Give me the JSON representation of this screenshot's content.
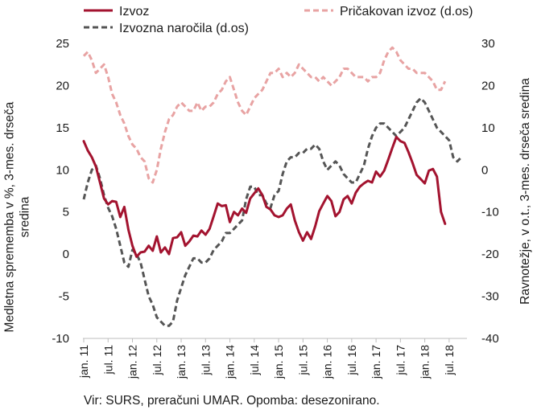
{
  "chart_data": {
    "type": "line",
    "title": "",
    "y_left": {
      "label": [
        "Medletna sprememba v %, 3-mes. drseča",
        "sredina"
      ],
      "min": -10,
      "max": 25,
      "ticks": [
        25,
        20,
        15,
        10,
        5,
        0,
        -5,
        -10
      ]
    },
    "y_right": {
      "label": [
        "Ravnotežje, v o.t., 3-mes. drseča sredina"
      ],
      "min": -40,
      "max": 30,
      "ticks": [
        30,
        20,
        10,
        0,
        -10,
        -20,
        -30,
        -40
      ]
    },
    "x_labels": [
      "jan. 11",
      "jul. 11",
      "jan. 12",
      "jul. 12",
      "jan. 13",
      "jul. 13",
      "jan. 14",
      "jul. 14",
      "jan. 15",
      "jul. 15",
      "jan. 16",
      "jul. 16",
      "jan. 17",
      "jul. 17",
      "jan. 18",
      "jul. 18"
    ],
    "x_start": "2011-01",
    "x_months": 94,
    "series": [
      {
        "name": "Izvoz",
        "axis": "left",
        "color": "#a3132f",
        "dash": "solid",
        "values": [
          13.4,
          12.3,
          11.5,
          10.4,
          8.5,
          6.6,
          5.9,
          6.3,
          6.2,
          4.4,
          5.6,
          2.9,
          1.0,
          -0.3,
          0.2,
          0.3,
          1.0,
          0.4,
          2.1,
          0.2,
          0.8,
          0.0,
          1.9,
          2.0,
          2.6,
          1.0,
          1.5,
          2.2,
          2.1,
          2.8,
          2.3,
          3.0,
          4.5,
          6.0,
          5.7,
          5.8,
          3.8,
          5.0,
          4.6,
          5.4,
          4.9,
          6.6,
          7.2,
          7.8,
          7.0,
          5.6,
          5.3,
          4.6,
          4.4,
          4.6,
          5.4,
          5.9,
          4.0,
          2.6,
          1.6,
          2.6,
          1.8,
          3.3,
          5.1,
          6.0,
          6.9,
          6.3,
          4.5,
          5.0,
          6.5,
          6.9,
          6.0,
          7.3,
          8.0,
          8.4,
          8.7,
          8.5,
          9.8,
          9.2,
          9.9,
          11.2,
          12.6,
          13.9,
          13.4,
          13.2,
          12.1,
          10.8,
          9.4,
          8.9,
          8.4,
          9.9,
          10.1,
          9.2,
          5.0,
          3.6
        ]
      },
      {
        "name": "Pričakovan izvoz (d.os)",
        "axis": "right",
        "color": "#e8a3a3",
        "dash": "dashed",
        "values": [
          27,
          28,
          26,
          23,
          24,
          25,
          22,
          18,
          16,
          13,
          11,
          8,
          6,
          5,
          3,
          2,
          -2,
          -3,
          0,
          5,
          9,
          12,
          13,
          15,
          16,
          15,
          14,
          14,
          16,
          14,
          15,
          15,
          16,
          18,
          19,
          21,
          22,
          19,
          16,
          14,
          13,
          15,
          17,
          18,
          19,
          21,
          23,
          23,
          24,
          22,
          23,
          22,
          23,
          25,
          24,
          23,
          22,
          22,
          21,
          22,
          21,
          20,
          21,
          22,
          24,
          24,
          23,
          22,
          22,
          22,
          21,
          22,
          22,
          23,
          26,
          28,
          29,
          28,
          26,
          25,
          24,
          24,
          23,
          23,
          23,
          22,
          21,
          19,
          19,
          21
        ]
      },
      {
        "name": "Izvozna naročila (d.os)",
        "axis": "right",
        "color": "#555555",
        "dash": "dashed",
        "values": [
          -7,
          -3,
          0,
          1,
          -2,
          -6,
          -9,
          -11,
          -14,
          -18,
          -22,
          -23,
          -19,
          -20,
          -22,
          -26,
          -30,
          -32,
          -35,
          -36,
          -37,
          -37,
          -36,
          -31,
          -28,
          -25,
          -23,
          -21,
          -21,
          -22,
          -22,
          -21,
          -19,
          -18,
          -17,
          -15,
          -15,
          -14,
          -13,
          -12,
          -7,
          -4,
          -4,
          -6,
          -6,
          -8,
          -9,
          -6,
          -5,
          -1,
          2,
          3,
          3,
          4,
          4,
          5,
          5,
          6,
          5,
          2,
          0,
          1,
          2,
          1,
          -1,
          -2,
          -3,
          -3,
          -1,
          1,
          5,
          8,
          10,
          11,
          11,
          10,
          9,
          8,
          9,
          10,
          12,
          14,
          16,
          17,
          16,
          14,
          12,
          10,
          9,
          8,
          7,
          3,
          2,
          3
        ]
      }
    ],
    "source_note": "Vir: SURS, preračuni UMAR. Opomba: desezonirano."
  }
}
